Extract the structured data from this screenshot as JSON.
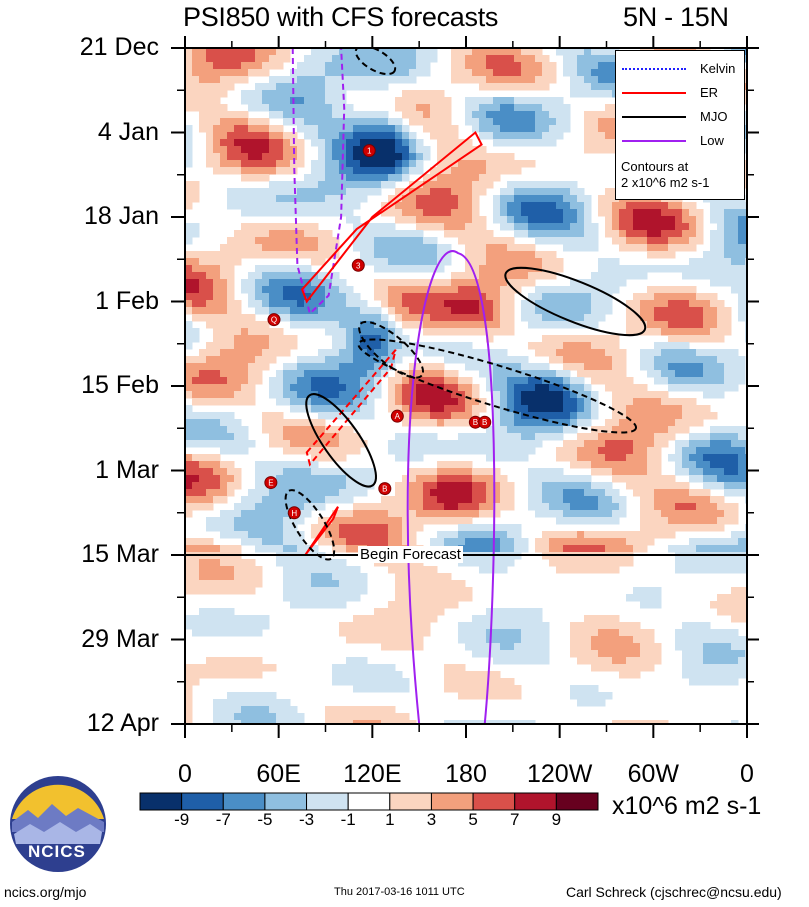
{
  "header": {
    "title": "PSI850 with CFS forecasts",
    "region": "5N - 15N"
  },
  "chart_data": {
    "type": "heatmap",
    "title": "PSI850 with CFS forecasts",
    "region": "5N - 15N",
    "x_axis": {
      "range_deg": [
        0,
        360
      ],
      "ticks": [
        {
          "deg": 0,
          "label": "0"
        },
        {
          "deg": 60,
          "label": "60E"
        },
        {
          "deg": 120,
          "label": "120E"
        },
        {
          "deg": 180,
          "label": "180"
        },
        {
          "deg": 240,
          "label": "120W"
        },
        {
          "deg": 300,
          "label": "60W"
        },
        {
          "deg": 360,
          "label": "0"
        }
      ]
    },
    "y_axis": {
      "range_days": [
        0,
        112
      ],
      "ticks": [
        {
          "day": 0,
          "label": "21 Dec"
        },
        {
          "day": 14,
          "label": "4 Jan"
        },
        {
          "day": 28,
          "label": "18 Jan"
        },
        {
          "day": 42,
          "label": "1 Feb"
        },
        {
          "day": 56,
          "label": "15 Feb"
        },
        {
          "day": 70,
          "label": "1 Mar"
        },
        {
          "day": 84,
          "label": "15 Mar"
        },
        {
          "day": 98,
          "label": "29 Mar"
        },
        {
          "day": 112,
          "label": "12 Apr"
        }
      ]
    },
    "forecast_start": {
      "day": 84,
      "label": "Begin Forecast"
    },
    "colorbar": {
      "levels": [
        "-9",
        "-7",
        "-5",
        "-3",
        "-1",
        "1",
        "3",
        "5",
        "7",
        "9"
      ],
      "colors": [
        "#08306b",
        "#1f5fa8",
        "#4a8ec6",
        "#8fbfe0",
        "#cfe3f1",
        "#ffffff",
        "#fbd5c0",
        "#f3a07d",
        "#d9504a",
        "#b0142c",
        "#67001f"
      ],
      "units": "x10^6 m2 s-1"
    },
    "legend": [
      {
        "name": "Kelvin",
        "color": "#2020ff",
        "style": "dotted"
      },
      {
        "name": "ER",
        "color": "#ff0000",
        "style": "solid"
      },
      {
        "name": "MJO",
        "color": "#000000",
        "style": "solid"
      },
      {
        "name": "Low",
        "color": "#a020f0",
        "style": "solid"
      }
    ],
    "contour_note_line1": "Contours at",
    "contour_note_line2": "2 x10^6 m2 s-1",
    "storm_markers": [
      {
        "label": "1",
        "lon": 118,
        "day": 17
      },
      {
        "label": "3",
        "lon": 111,
        "day": 36
      },
      {
        "label": "Q",
        "lon": 57,
        "day": 45
      },
      {
        "label": "A",
        "lon": 136,
        "day": 61
      },
      {
        "label": "B",
        "lon": 186,
        "day": 62
      },
      {
        "label": "B",
        "lon": 192,
        "day": 62
      },
      {
        "label": "E",
        "lon": 55,
        "day": 72
      },
      {
        "label": "B",
        "lon": 128,
        "day": 73
      },
      {
        "label": "H",
        "lon": 70,
        "day": 77
      }
    ]
  },
  "footer": {
    "logo_text": "NCICS",
    "url": "ncics.org/mjo",
    "timestamp": "Thu 2017-03-16 1011 UTC",
    "author": "Carl Schreck (cjschrec@ncsu.edu)"
  }
}
